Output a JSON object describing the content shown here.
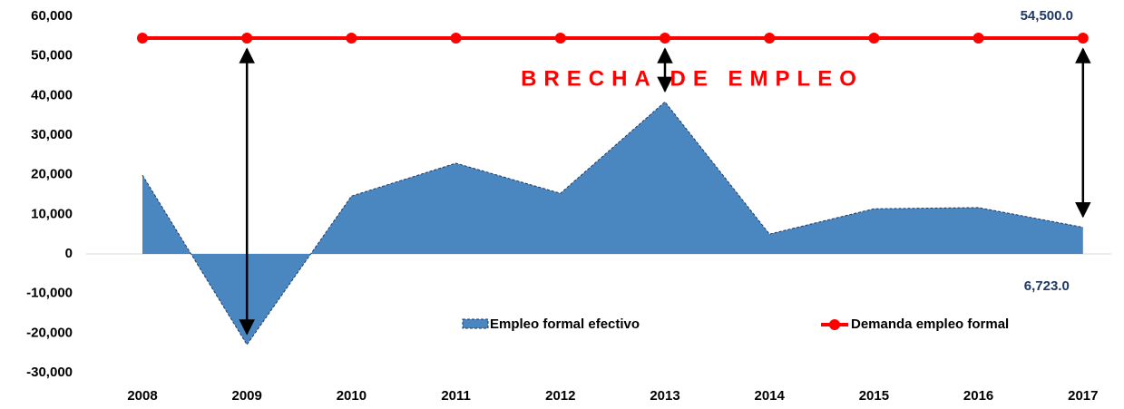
{
  "chart_data": {
    "type": "area",
    "annotation": "BRECHA DE EMPLEO",
    "categories": [
      "2008",
      "2009",
      "2010",
      "2011",
      "2012",
      "2013",
      "2014",
      "2015",
      "2016",
      "2017"
    ],
    "series": [
      {
        "name": "Empleo formal efectivo",
        "type": "area",
        "color": "#4a86c0",
        "values": [
          19900,
          -22900,
          14600,
          22900,
          15300,
          38400,
          5000,
          11400,
          11700,
          6723
        ],
        "value_labels": [
          null,
          null,
          null,
          null,
          null,
          null,
          null,
          null,
          null,
          "6,723.0"
        ]
      },
      {
        "name": "Demanda empleo formal",
        "type": "line",
        "color": "#ff0000",
        "values": [
          54500,
          54500,
          54500,
          54500,
          54500,
          54500,
          54500,
          54500,
          54500,
          54500
        ],
        "value_labels": [
          null,
          null,
          null,
          null,
          null,
          null,
          null,
          null,
          null,
          "54,500.0"
        ]
      }
    ],
    "ylim": [
      -30000,
      60000
    ],
    "yticks": [
      {
        "value": -30000,
        "label": "-30,000"
      },
      {
        "value": -20000,
        "label": "-20,000"
      },
      {
        "value": -10000,
        "label": "-10,000"
      },
      0,
      {
        "value": 10000,
        "label": "10,000"
      },
      {
        "value": 20000,
        "label": "20,000"
      },
      {
        "value": 30000,
        "label": "30,000"
      },
      {
        "value": 40000,
        "label": "40,000"
      },
      {
        "value": 50000,
        "label": "50,000"
      },
      {
        "value": 60000,
        "label": "60,000"
      }
    ],
    "zero_line": true,
    "value_label_color": "#1f3864",
    "annotation_color": "#ff0000"
  }
}
